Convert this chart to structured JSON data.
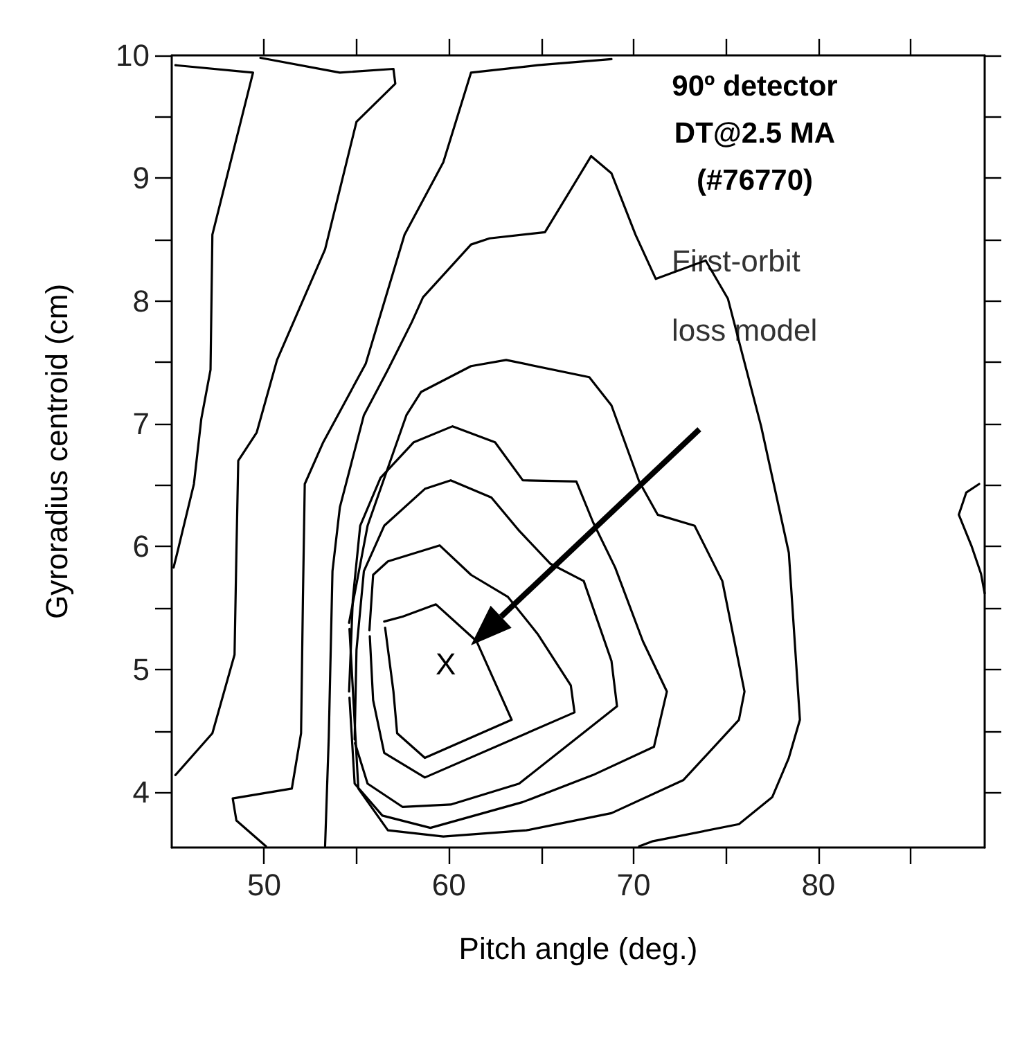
{
  "chart_data": {
    "type": "line",
    "title": "90º detector\nDT@2.5 MA\n(#76770)",
    "xlabel": "Pitch angle (deg.)",
    "ylabel": "Gyroradius centroid (cm)",
    "xlim": [
      45,
      89
    ],
    "ylim": [
      3.55,
      10
    ],
    "xticks": [
      50,
      {
        "value": 55,
        "label": null
      },
      60,
      {
        "value": 65,
        "label": null
      },
      70,
      {
        "value": 75,
        "label": null
      },
      80,
      {
        "value": 85,
        "label": null
      }
    ],
    "yticks": [
      4,
      {
        "value": 4.5,
        "label": null
      },
      5,
      {
        "value": 5.5,
        "label": null
      },
      6,
      {
        "value": 6.5,
        "label": null
      },
      7,
      {
        "value": 7.5,
        "label": null
      },
      8,
      {
        "value": 8.5,
        "label": null
      },
      9,
      {
        "value": 9.5,
        "label": null
      },
      10
    ],
    "grid": false,
    "marker": "none",
    "line_style": "solid",
    "annotations": [
      "X",
      "First-orbit\nloss model"
    ],
    "series": [
      {
        "color": "#000000",
        "x": [
          45.2,
          49.4,
          47.2,
          47.1,
          46.6,
          46.2,
          45.3,
          45.1
        ],
        "values": [
          9.92,
          9.86,
          8.54,
          7.44,
          7.04,
          6.51,
          5.95,
          5.83
        ]
      },
      {
        "color": "#000000",
        "x": [
          49.8,
          54.1,
          57,
          57.1,
          55,
          53.3,
          50.7,
          49.6,
          48.6,
          48.5,
          48.4,
          47.2,
          45.2
        ],
        "values": [
          9.98,
          9.86,
          9.89,
          9.77,
          9.46,
          8.42,
          7.52,
          6.93,
          6.7,
          5.95,
          5.12,
          4.48,
          4.14
        ]
      },
      {
        "color": "#000000",
        "x": [
          68.8,
          64.8,
          61.2,
          59.7,
          57.6,
          55.5,
          53.2,
          52.2,
          52.1,
          52,
          51.5,
          48.3,
          48.5,
          50.1
        ],
        "values": [
          9.97,
          9.92,
          9.86,
          9.13,
          8.54,
          7.49,
          6.85,
          6.51,
          5.57,
          4.48,
          4.03,
          3.95,
          3.77,
          3.56
        ]
      },
      {
        "color": "#000000",
        "x": [
          53.3,
          53.5,
          53.7,
          54.1,
          55.4,
          56.7,
          58,
          58.6,
          61.2,
          62.2,
          65.2,
          67.7,
          68.8,
          70.1,
          71.2,
          73.9,
          75.1,
          76.9,
          78.4,
          79,
          78.4,
          77.5,
          75.7,
          71,
          70.3
        ],
        "values": [
          3.56,
          4.45,
          5.8,
          6.32,
          7.07,
          7.44,
          7.83,
          8.03,
          8.46,
          8.51,
          8.56,
          9.18,
          9.04,
          8.54,
          8.18,
          8.33,
          8.02,
          6.98,
          5.95,
          4.59,
          4.28,
          3.96,
          3.74,
          3.6,
          3.56
        ]
      },
      {
        "color": "#000000",
        "x": [
          54.6,
          55.6,
          57.7,
          58.5,
          61.2,
          63.1,
          67.6,
          68.8,
          70.3,
          71.3,
          73.3,
          74.8,
          76,
          75.7,
          72.7,
          68.8,
          64.2,
          59.7,
          56.7,
          55.1,
          54.62
        ],
        "values": [
          5.38,
          6.17,
          7.07,
          7.26,
          7.47,
          7.52,
          7.38,
          7.15,
          6.53,
          6.26,
          6.17,
          5.72,
          4.82,
          4.59,
          4.1,
          3.83,
          3.69,
          3.64,
          3.69,
          4.03,
          5.33
        ]
      },
      {
        "color": "#000000",
        "x": [
          54.6,
          54.8,
          55.2,
          56.3,
          58.1,
          60.2,
          62.5,
          64,
          66.9,
          67.8,
          69,
          70.5,
          71.8,
          71.1,
          67.8,
          64,
          59,
          56.4,
          54.9,
          54.62
        ],
        "values": [
          4.82,
          5.57,
          6.17,
          6.56,
          6.85,
          6.98,
          6.85,
          6.54,
          6.53,
          6.2,
          5.83,
          5.23,
          4.82,
          4.37,
          4.14,
          3.92,
          3.71,
          3.81,
          4.07,
          4.77
        ]
      },
      {
        "color": "#000000",
        "x": [
          54.9,
          55,
          55.4,
          56.5,
          58.7,
          60.1,
          62.3,
          63.8,
          65.5,
          67.3,
          68.8,
          69.1,
          63.8,
          60.1,
          57.5,
          55.6,
          54.92
        ],
        "values": [
          4.43,
          5.16,
          5.8,
          6.17,
          6.47,
          6.54,
          6.4,
          6.13,
          5.86,
          5.72,
          5.07,
          4.7,
          4.07,
          3.9,
          3.88,
          4.07,
          4.4
        ]
      },
      {
        "color": "#000000",
        "x": [
          55.7,
          55.9,
          56.7,
          59.5,
          61.2,
          63.2,
          64.8,
          66.6,
          66.8,
          58.7,
          56.5,
          55.9,
          55.72
        ],
        "values": [
          5.32,
          5.77,
          5.88,
          6.01,
          5.77,
          5.59,
          5.29,
          4.87,
          4.65,
          4.12,
          4.32,
          4.75,
          5.27
        ]
      },
      {
        "color": "#000000",
        "x": [
          56.5,
          57.5,
          59.3,
          61.5,
          63.4,
          58.7,
          57.2,
          57,
          56.55
        ],
        "values": [
          5.39,
          5.43,
          5.53,
          5.23,
          4.59,
          4.28,
          4.48,
          4.82,
          5.34
        ]
      },
      {
        "color": "#000000",
        "x": [
          88.7,
          88,
          87.6,
          88.3,
          88.8,
          89
        ],
        "values": [
          6.51,
          6.44,
          6.26,
          6,
          5.78,
          5.62
        ]
      }
    ]
  }
}
